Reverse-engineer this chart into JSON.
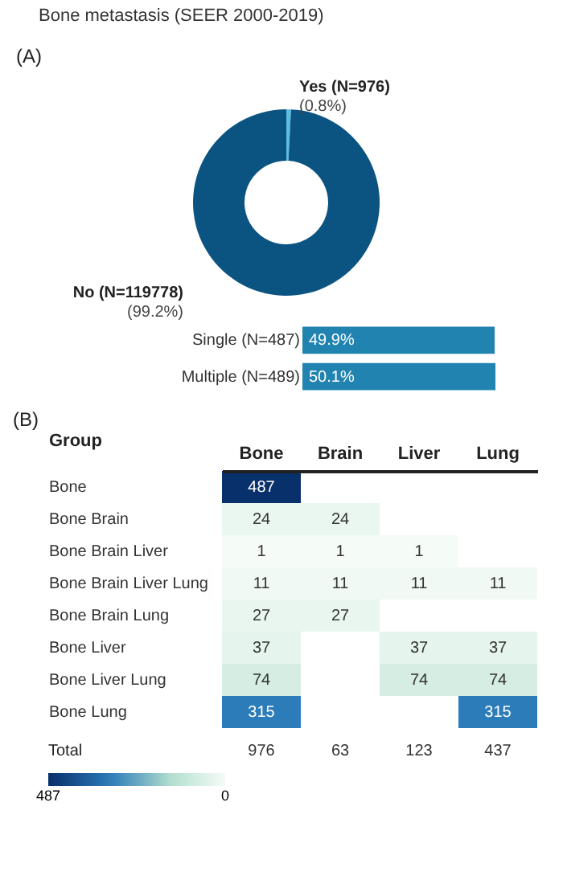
{
  "chart_data": [
    {
      "type": "donut",
      "title": "Bone metastasis (SEER 2000-2019)",
      "annotations": [
        "(A)"
      ],
      "categories": [
        "Yes (N=976)",
        "No (N=119778)"
      ],
      "values": [
        0.8,
        99.2
      ],
      "colors": [
        "#5bbde4",
        "#0b5380"
      ],
      "value_labels": [
        "(0.8%)",
        "(99.2%)"
      ]
    },
    {
      "type": "bar",
      "orientation": "horizontal",
      "categories": [
        "Single (N=487)",
        "Multiple (N=489)"
      ],
      "values": [
        49.9,
        50.1
      ],
      "value_labels": [
        "49.9%",
        "50.1%"
      ],
      "color": "#2183b0"
    },
    {
      "type": "heatmap",
      "ylabel": "Group",
      "annotations": [
        "(B)",
        "Total"
      ],
      "categories": [
        "Bone",
        "Brain",
        "Liver",
        "Lung"
      ],
      "y_categories": [
        "Bone",
        "Bone Brain",
        "Bone Brain Liver",
        "Bone Brain Liver Lung",
        "Bone Brain Lung",
        "Bone Liver",
        "Bone Liver Lung",
        "Bone Lung"
      ],
      "cells": [
        [
          487,
          null,
          null,
          null
        ],
        [
          24,
          24,
          null,
          null
        ],
        [
          1,
          1,
          1,
          null
        ],
        [
          11,
          11,
          11,
          11
        ],
        [
          27,
          27,
          null,
          null
        ],
        [
          37,
          null,
          37,
          37
        ],
        [
          74,
          null,
          74,
          74
        ],
        [
          315,
          null,
          null,
          315
        ]
      ],
      "data_labels": true,
      "totals": [
        "976",
        "63",
        "123",
        "437"
      ],
      "clim": [
        487,
        0
      ],
      "cticks": [
        487,
        0
      ]
    }
  ]
}
